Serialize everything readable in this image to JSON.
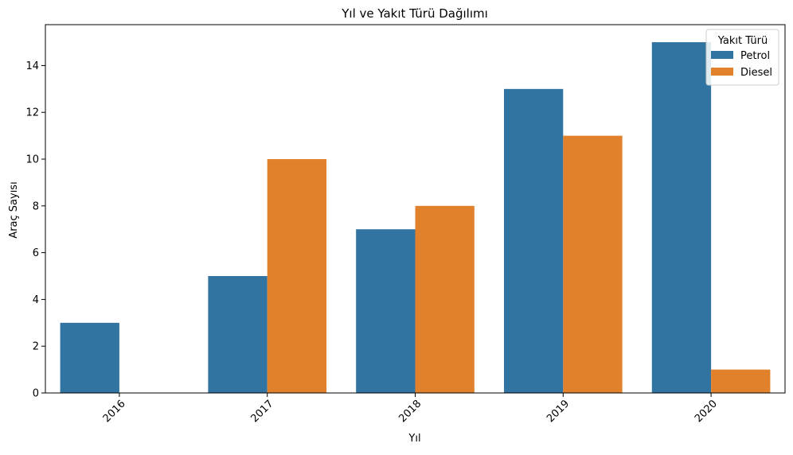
{
  "chart_data": {
    "type": "bar",
    "title": "Yıl ve Yakıt Türü Dağılımı",
    "xlabel": "Yıl",
    "ylabel": "Araç Sayısı",
    "categories": [
      "2016",
      "2017",
      "2018",
      "2019",
      "2020"
    ],
    "series": [
      {
        "name": "Petrol",
        "color": "#3274a1",
        "values": [
          3,
          5,
          7,
          13,
          15
        ]
      },
      {
        "name": "Diesel",
        "color": "#e1812c",
        "values": [
          0,
          10,
          8,
          11,
          1
        ]
      }
    ],
    "ylim": [
      0,
      15.75
    ],
    "yticks": [
      "0",
      "2",
      "4",
      "6",
      "8",
      "10",
      "12",
      "14"
    ],
    "legend": {
      "title": "Yakıt Türü",
      "placement": "top-right"
    },
    "grid": false
  }
}
